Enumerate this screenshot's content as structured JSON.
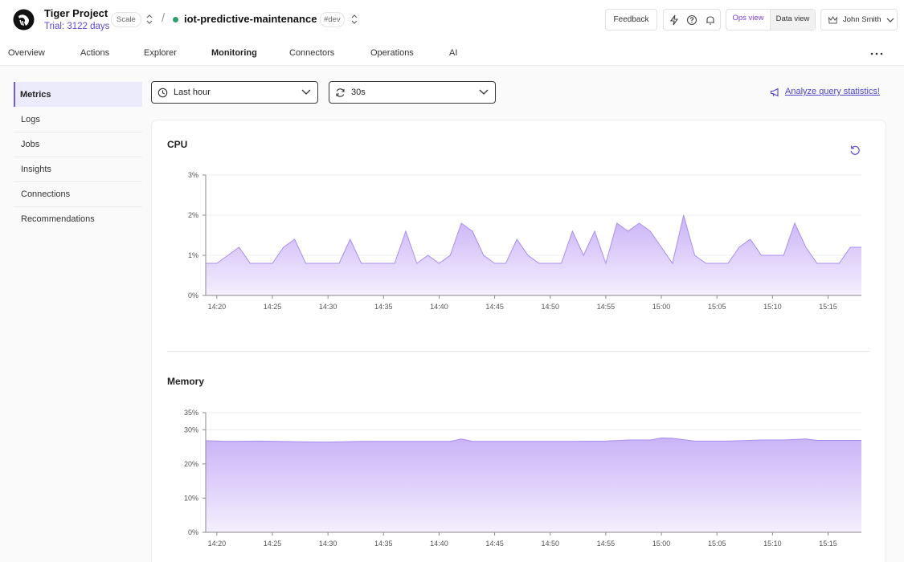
{
  "header": {
    "project_name": "Tiger Project",
    "trial": "Trial: 3122 days",
    "plan_badge": "Scale",
    "separator": "/",
    "service_name": "iot-predictive-maintenance",
    "env_badge": "#dev",
    "feedback_label": "Feedback",
    "view_ops": "Ops view",
    "view_data": "Data view",
    "user_name": "John Smith"
  },
  "tabs": [
    {
      "label": "Overview"
    },
    {
      "label": "Actions"
    },
    {
      "label": "Explorer"
    },
    {
      "label": "Monitoring",
      "active": true
    },
    {
      "label": "Connectors"
    },
    {
      "label": "Operations"
    },
    {
      "label": "AI"
    }
  ],
  "sidebar": {
    "items": [
      {
        "label": "Metrics",
        "active": true
      },
      {
        "label": "Logs"
      },
      {
        "label": "Jobs"
      },
      {
        "label": "Insights"
      },
      {
        "label": "Connections"
      },
      {
        "label": "Recommendations"
      }
    ]
  },
  "filters": {
    "time_range": "Last hour",
    "refresh_interval": "30s",
    "analyze_link": "Analyze query statistics!"
  },
  "colors": {
    "accent": "#6b5ce7",
    "area_stroke": "#a98df0",
    "area_fill_top": "#c9b3f7",
    "area_fill_bottom": "#f4effd",
    "status_dot": "#2e9e6b"
  },
  "chart_data": [
    {
      "type": "area",
      "title": "CPU",
      "ytick_labels": [
        "0%",
        "1%",
        "2%",
        "3%"
      ],
      "yticks": [
        0,
        1,
        2,
        3
      ],
      "ylim": [
        0,
        3
      ],
      "xtick_labels": [
        "14:20",
        "14:25",
        "14:30",
        "14:35",
        "14:40",
        "14:45",
        "14:50",
        "14:55",
        "15:00",
        "15:05",
        "15:10",
        "15:15"
      ],
      "xticks": [
        4,
        9,
        14,
        19,
        24,
        29,
        34,
        39,
        44,
        49,
        54,
        59
      ],
      "xlim": [
        3,
        62
      ],
      "grid": true,
      "x": [
        3,
        4,
        5,
        6,
        7,
        8,
        9,
        10,
        11,
        12,
        13,
        14,
        15,
        16,
        17,
        18,
        19,
        20,
        21,
        22,
        23,
        24,
        25,
        26,
        27,
        28,
        29,
        30,
        31,
        32,
        33,
        34,
        35,
        36,
        37,
        38,
        39,
        40,
        41,
        42,
        43,
        44,
        45,
        46,
        47,
        48,
        49,
        50,
        51,
        52,
        53,
        54,
        55,
        56,
        57,
        58,
        59,
        60,
        61,
        62
      ],
      "values": [
        0.8,
        0.8,
        1.0,
        1.2,
        0.8,
        0.8,
        0.8,
        1.2,
        1.4,
        0.8,
        0.8,
        0.8,
        0.8,
        1.4,
        0.8,
        0.8,
        0.8,
        0.8,
        1.6,
        0.8,
        1.0,
        0.8,
        1.0,
        1.8,
        1.6,
        1.0,
        0.8,
        0.8,
        1.4,
        1.0,
        0.8,
        0.8,
        0.8,
        1.6,
        1.0,
        1.6,
        0.8,
        1.8,
        1.6,
        1.8,
        1.6,
        1.2,
        0.8,
        2.0,
        1.0,
        0.8,
        0.8,
        0.8,
        1.2,
        1.4,
        1.0,
        1.0,
        1.0,
        1.8,
        1.2,
        0.8,
        0.8,
        0.8,
        1.2,
        1.2
      ]
    },
    {
      "type": "area",
      "title": "Memory",
      "ytick_labels": [
        "0%",
        "10%",
        "20%",
        "30%",
        "35%"
      ],
      "yticks": [
        0,
        10,
        20,
        30,
        35
      ],
      "ylim": [
        0,
        35
      ],
      "xtick_labels": [
        "14:20",
        "14:25",
        "14:30",
        "14:35",
        "14:40",
        "14:45",
        "14:50",
        "14:55",
        "15:00",
        "15:05",
        "15:10",
        "15:15"
      ],
      "xticks": [
        4,
        9,
        14,
        19,
        24,
        29,
        34,
        39,
        44,
        49,
        54,
        59
      ],
      "xlim": [
        3,
        62
      ],
      "grid": true,
      "x": [
        3,
        5,
        8,
        11,
        14,
        17,
        20,
        23,
        25,
        26,
        27,
        30,
        33,
        36,
        39,
        41,
        43,
        44,
        45,
        47,
        50,
        53,
        55,
        57,
        58,
        60,
        62
      ],
      "values": [
        26.8,
        26.6,
        26.7,
        26.5,
        26.4,
        26.6,
        26.6,
        26.6,
        26.6,
        27.3,
        26.6,
        26.6,
        26.6,
        26.6,
        26.7,
        27.0,
        27.0,
        27.6,
        27.5,
        26.7,
        26.7,
        27.0,
        27.0,
        27.3,
        26.9,
        26.9,
        26.9
      ]
    }
  ]
}
